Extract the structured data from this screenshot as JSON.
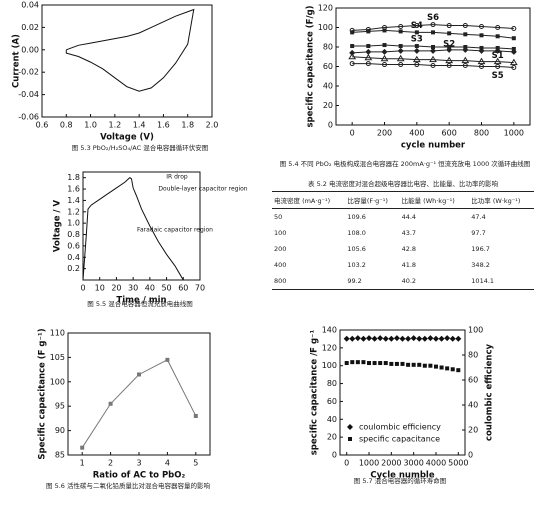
{
  "chart_data": [
    {
      "type": "line",
      "caption": "图 5.3  PbO₂/H₂SO₄/AC 混合电容器循环伏安图",
      "x_label": "Voltage (V)",
      "y_label": "Current (A)",
      "x": [
        0.8,
        0.9,
        1.0,
        1.1,
        1.2,
        1.3,
        1.4,
        1.5,
        1.6,
        1.7,
        1.8,
        1.85,
        1.84,
        1.8,
        1.7,
        1.6,
        1.5,
        1.4,
        1.3,
        1.2,
        1.1,
        1.0,
        0.9,
        0.8,
        0.8
      ],
      "series": [
        {
          "color": "#111111",
          "values": [
            0,
            0.004,
            0.006,
            0.008,
            0.01,
            0.012,
            0.015,
            0.02,
            0.025,
            0.03,
            0.034,
            0.036,
            0.03,
            0.005,
            -0.012,
            -0.025,
            -0.034,
            -0.037,
            -0.033,
            -0.025,
            -0.017,
            -0.011,
            -0.006,
            -0.003,
            0
          ]
        }
      ],
      "xlim": [
        0.6,
        2.0
      ],
      "xticks": [
        0.6,
        0.8,
        {
          "value": 1,
          "label": "1.0"
        },
        1.2,
        1.4,
        1.6,
        1.8,
        {
          "value": 2,
          "label": "2.0"
        }
      ],
      "ylim": [
        -0.06,
        0.04
      ],
      "yticks": [
        -0.06,
        -0.04,
        -0.02,
        {
          "value": 0,
          "label": "0.00"
        },
        0.02,
        0.04
      ]
    },
    {
      "type": "line",
      "caption": "图 5.4  不同 PbO₂ 电极构成混合电容器在 200mA·g⁻¹ 恒流充放电 1000 次循环曲线图",
      "x_label": "cycle number",
      "y_label": "specific capacitance (F/g)",
      "legend": "inline",
      "x": [
        0,
        100,
        200,
        300,
        400,
        500,
        600,
        700,
        800,
        900,
        1000
      ],
      "series": [
        {
          "name": "S1",
          "color": "#222222",
          "marker": "triangle",
          "values": [
            70,
            69,
            68,
            68,
            67,
            67,
            66,
            66,
            65,
            65,
            64
          ]
        },
        {
          "name": "S2",
          "color": "#222222",
          "marker": "diamond",
          "values": [
            74,
            75,
            75,
            76,
            76,
            76,
            77,
            77,
            76,
            76,
            75
          ]
        },
        {
          "name": "S3",
          "color": "#222222",
          "marker": "square",
          "values": [
            81,
            81,
            82,
            81,
            81,
            80,
            80,
            80,
            79,
            79,
            78
          ]
        },
        {
          "name": "S4",
          "color": "#222222",
          "marker": "square",
          "values": [
            95,
            96,
            97,
            96,
            95,
            95,
            94,
            93,
            92,
            91,
            89
          ]
        },
        {
          "name": "S5",
          "color": "#222222",
          "marker": "circle",
          "values": [
            63,
            63,
            62,
            62,
            62,
            61,
            61,
            61,
            60,
            60,
            59
          ]
        },
        {
          "name": "S6",
          "color": "#222222",
          "marker": "circle",
          "values": [
            97,
            98,
            100,
            101,
            102,
            103,
            102,
            102,
            101,
            100,
            99
          ]
        }
      ],
      "xlim": [
        -100,
        1100
      ],
      "xticks": [
        0,
        200,
        400,
        600,
        800,
        1000
      ],
      "ylim": [
        0,
        120
      ],
      "yticks": [
        0,
        20,
        40,
        60,
        80,
        100,
        120
      ]
    },
    {
      "type": "line",
      "caption": "图 5.5  混合电容器恒流充放电曲线图",
      "x_label": "Time / min",
      "y_label": "Voltage / V",
      "annotations": [
        "IR drop",
        "Double-layer capacitor region",
        "Faradaic capacitor region"
      ],
      "x": [
        0,
        2,
        3,
        5,
        10,
        15,
        20,
        25,
        28,
        29,
        30,
        32,
        35,
        40,
        45,
        50,
        55,
        58,
        60
      ],
      "series": [
        {
          "color": "#111111",
          "values": [
            0,
            0.8,
            1.25,
            1.32,
            1.42,
            1.52,
            1.62,
            1.72,
            1.8,
            1.78,
            1.62,
            1.48,
            1.25,
            0.95,
            0.68,
            0.45,
            0.25,
            0.1,
            0
          ]
        }
      ],
      "xlim": [
        0,
        70
      ],
      "xticks": [
        0,
        10,
        20,
        30,
        40,
        50,
        60,
        70
      ],
      "ylim": [
        0,
        1.9
      ],
      "yticks": [
        0.2,
        0.4,
        0.6,
        0.8,
        {
          "value": 1,
          "label": "1.0"
        },
        1.2,
        1.4,
        1.6,
        1.8
      ]
    },
    {
      "type": "line",
      "caption": "图 5.6  活性碳与二氧化铅质量比对混合电容器容量的影响",
      "x_label": "Ratio of AC to PbO₂",
      "y_label": "Specific capacitance (F g⁻¹)",
      "x": [
        1,
        2,
        3,
        4,
        5
      ],
      "series": [
        {
          "color": "#777777",
          "marker": "square",
          "values": [
            86.5,
            95.5,
            101.5,
            104.5,
            93
          ]
        }
      ],
      "xlim": [
        0.5,
        5.5
      ],
      "xticks": [
        1,
        2,
        3,
        4,
        5
      ],
      "ylim": [
        85,
        110
      ],
      "yticks": [
        85,
        90,
        95,
        100,
        105,
        110
      ]
    },
    {
      "type": "line",
      "caption": "图 5.7  混合电容器的循环寿命图",
      "x_label": "Cycle numble",
      "y_label": "specific capacitance /F g⁻¹",
      "y2_label": "coulombic efficiency",
      "legend": "lower left",
      "x": [
        0,
        250,
        500,
        750,
        1000,
        1250,
        1500,
        1750,
        2000,
        2250,
        2500,
        2750,
        3000,
        3250,
        3500,
        3750,
        4000,
        4250,
        4500,
        4750,
        5000
      ],
      "series": [
        {
          "name": "coulombic efficiency",
          "color": "#111111",
          "marker": "diamond",
          "line": false,
          "axis": "y2",
          "values": [
            93,
            93,
            93.5,
            93,
            93.5,
            93,
            93.5,
            93,
            93,
            93.5,
            93,
            93,
            93.5,
            93,
            93,
            93.5,
            93,
            93,
            93.5,
            93,
            93
          ]
        },
        {
          "name": "specific capacitance",
          "color": "#111111",
          "marker": "square",
          "line": false,
          "values": [
            103,
            104,
            104,
            104,
            103,
            103,
            103,
            103,
            102,
            102,
            102,
            101,
            101,
            101,
            100,
            100,
            99,
            98,
            97,
            96,
            95
          ]
        }
      ],
      "xlim": [
        -300,
        5300
      ],
      "xticks": [
        0,
        1000,
        2000,
        3000,
        4000,
        5000
      ],
      "ylim": [
        0,
        140
      ],
      "yticks": [
        0,
        20,
        40,
        60,
        80,
        100,
        120,
        140
      ],
      "y2lim": [
        0,
        100
      ],
      "y2ticks": [
        0,
        20,
        40,
        60,
        80,
        100
      ]
    }
  ],
  "table": {
    "caption": "表 5.2  电流密度对混合超级电容器比电容、比能量、比功率的影响",
    "header": [
      "电流密度 (mA·g⁻¹)",
      "比容量(F·g⁻¹)",
      "比能量 (Wh·kg⁻¹)",
      "比功率 (W·kg⁻¹)"
    ],
    "rows": [
      [
        "50",
        "109.6",
        "44.4",
        "47.4"
      ],
      [
        "100",
        "108.0",
        "43.7",
        "97.7"
      ],
      [
        "200",
        "105.6",
        "42.8",
        "196.7"
      ],
      [
        "400",
        "103.2",
        "41.8",
        "348.2"
      ],
      [
        "800",
        "99.2",
        "40.2",
        "1014.1"
      ]
    ]
  }
}
